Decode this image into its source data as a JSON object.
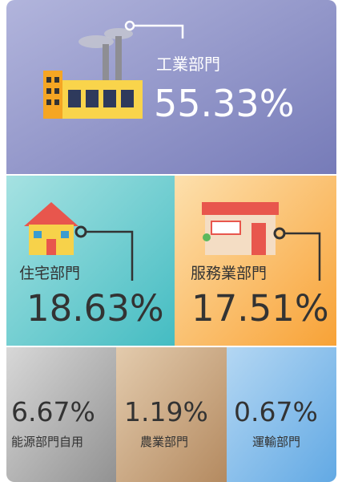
{
  "tiles": [
    {
      "label": "工業部門",
      "value": "55.33%"
    },
    {
      "label": "住宅部門",
      "value": "18.63%"
    },
    {
      "label": "服務業部門",
      "value": "17.51%"
    },
    {
      "label": "能源部門自用",
      "value": "6.67%"
    },
    {
      "label": "農業部門",
      "value": "1.19%"
    },
    {
      "label": "運輸部門",
      "value": "0.67%"
    }
  ]
}
